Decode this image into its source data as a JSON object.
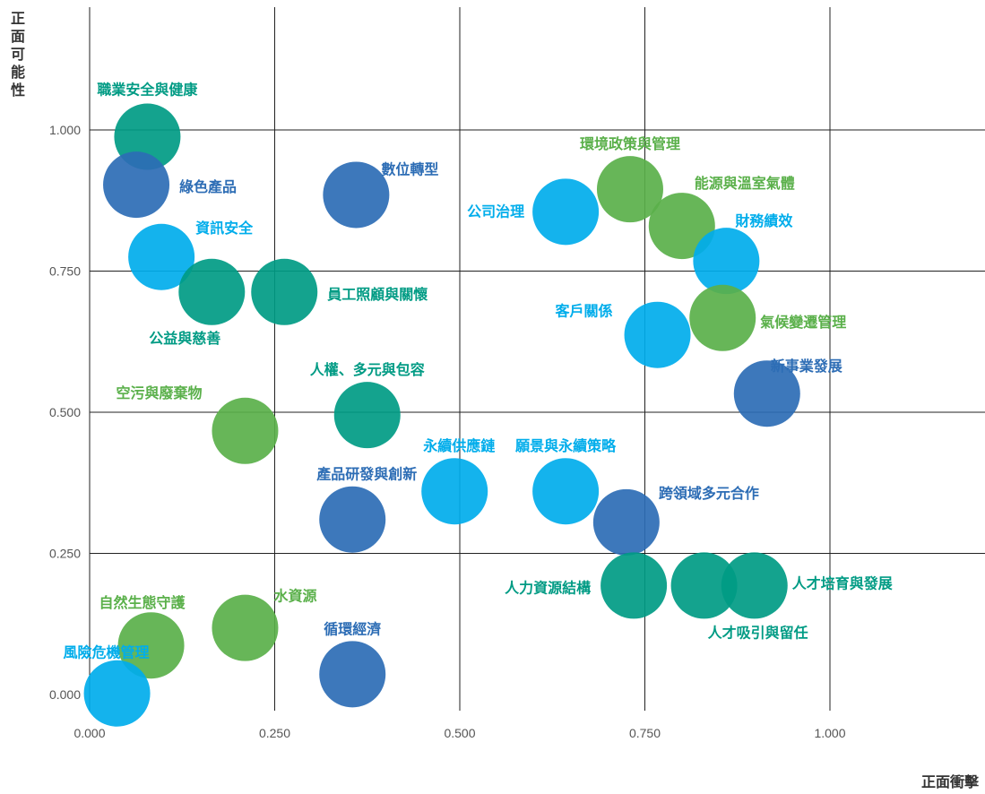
{
  "chart_data": {
    "type": "scatter",
    "xlabel": "正面衝擊",
    "ylabel": "正面可能性",
    "x_ticks": [
      "0.000",
      "0.250",
      "0.500",
      "0.750",
      "1.000"
    ],
    "y_ticks": [
      "0.000",
      "0.250",
      "0.500",
      "0.750",
      "1.000"
    ],
    "xlim": [
      0,
      1.2
    ],
    "ylim": [
      0,
      1.2
    ],
    "grid": true,
    "colors": {
      "teal": "#009b84",
      "green": "#5ab04a",
      "navy": "#2d6db5",
      "cyan": "#00adeb"
    },
    "points": [
      {
        "label": "職業安全與健康",
        "x": 0.078,
        "y": 0.988,
        "color": "teal"
      },
      {
        "label": "綠色產品",
        "x": 0.063,
        "y": 0.903,
        "color": "navy"
      },
      {
        "label": "數位轉型",
        "x": 0.36,
        "y": 0.885,
        "color": "navy"
      },
      {
        "label": "資訊安全",
        "x": 0.097,
        "y": 0.775,
        "color": "cyan"
      },
      {
        "label": "公益與慈善",
        "x": 0.165,
        "y": 0.713,
        "color": "teal"
      },
      {
        "label": "員工照顧與關懷",
        "x": 0.263,
        "y": 0.713,
        "color": "teal"
      },
      {
        "label": "人權、多元與包容",
        "x": 0.375,
        "y": 0.495,
        "color": "teal"
      },
      {
        "label": "空污與廢棄物",
        "x": 0.21,
        "y": 0.467,
        "color": "green"
      },
      {
        "label": "產品研發與創新",
        "x": 0.355,
        "y": 0.31,
        "color": "navy"
      },
      {
        "label": "永續供應鏈",
        "x": 0.493,
        "y": 0.36,
        "color": "cyan"
      },
      {
        "label": "願景與永續策略",
        "x": 0.643,
        "y": 0.36,
        "color": "cyan"
      },
      {
        "label": "公司治理",
        "x": 0.643,
        "y": 0.855,
        "color": "cyan"
      },
      {
        "label": "環境政策與管理",
        "x": 0.73,
        "y": 0.895,
        "color": "green"
      },
      {
        "label": "能源與溫室氣體",
        "x": 0.8,
        "y": 0.83,
        "color": "green"
      },
      {
        "label": "財務績效",
        "x": 0.86,
        "y": 0.768,
        "color": "cyan"
      },
      {
        "label": "氣候變遷管理",
        "x": 0.855,
        "y": 0.667,
        "color": "green"
      },
      {
        "label": "客戶關係",
        "x": 0.767,
        "y": 0.637,
        "color": "cyan"
      },
      {
        "label": "新事業發展",
        "x": 0.915,
        "y": 0.533,
        "color": "navy"
      },
      {
        "label": "跨領域多元合作",
        "x": 0.725,
        "y": 0.305,
        "color": "navy"
      },
      {
        "label": "人力資源結構",
        "x": 0.735,
        "y": 0.193,
        "color": "teal"
      },
      {
        "label": "人才吸引與留任",
        "x": 0.83,
        "y": 0.193,
        "color": "teal"
      },
      {
        "label": "人才培育與發展",
        "x": 0.898,
        "y": 0.193,
        "color": "teal"
      },
      {
        "label": "自然生態守護",
        "x": 0.083,
        "y": 0.087,
        "color": "green"
      },
      {
        "label": "水資源",
        "x": 0.21,
        "y": 0.118,
        "color": "green"
      },
      {
        "label": "循環經濟",
        "x": 0.355,
        "y": 0.036,
        "color": "navy"
      },
      {
        "label": "風險危機管理",
        "x": 0.037,
        "y": 0.002,
        "color": "cyan"
      }
    ]
  }
}
